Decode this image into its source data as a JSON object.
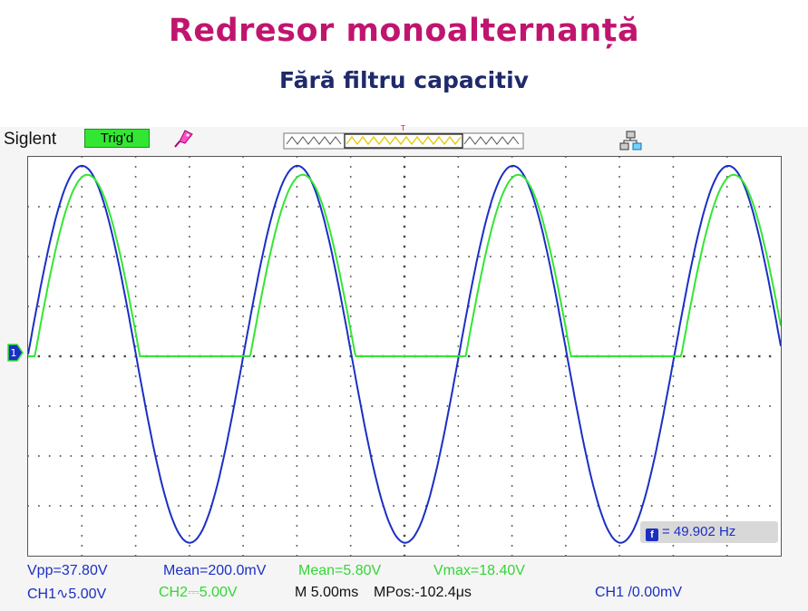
{
  "slide": {
    "title": "Redresor monoalternanță",
    "subtitle": "Fără filtru capacitiv"
  },
  "scope": {
    "brand": "Siglent",
    "trigger_status": "Trig'd",
    "trigger_marker": "T",
    "ground_marker": "1",
    "frequency": {
      "icon_letter": "f",
      "text": "= 49.902 Hz"
    },
    "measurements": {
      "ch1_vpp": "Vpp=37.80V",
      "ch1_mean": "Mean=200.0mV",
      "ch2_mean": "Mean=5.80V",
      "ch2_vmax": "Vmax=18.40V"
    },
    "channels": {
      "ch1_scale": "CH1∿5.00V",
      "ch2_scale": "CH2⎓5.00V",
      "timebase": "M 5.00ms",
      "mpos": "MPos:-102.4μs",
      "trigger_level": "CH1 /0.00mV"
    },
    "colors": {
      "ch1": "#1b2fc4",
      "ch2": "#33e633",
      "title": "#c0156e",
      "subtitle": "#1f2a6b"
    },
    "icons": [
      "probe-icon",
      "network-icon",
      "trigger-marker-icon"
    ]
  },
  "chart_data": {
    "type": "line",
    "title": "",
    "xlabel": "",
    "ylabel": "",
    "grid": true,
    "divisions": {
      "x": 14,
      "y": 8
    },
    "x_unit": "ms",
    "x_per_div": 5.0,
    "y_unit": "V",
    "y_per_div": 5.0,
    "xlim": [
      0,
      70
    ],
    "ylim": [
      -20,
      20
    ],
    "series": [
      {
        "channel": "CH1",
        "color": "#1b2fc4",
        "waveform": "sine",
        "frequency_hz": 49.902,
        "amplitude_v": 18.9,
        "offset_v": 0.2,
        "start_phase_deg": 0
      },
      {
        "channel": "CH2",
        "color": "#33e633",
        "waveform": "half-wave-rectified-sine",
        "frequency_hz": 49.902,
        "peak_v": 18.4,
        "diode_drop_v": 0.7,
        "delay_ms": 0.5
      }
    ]
  }
}
